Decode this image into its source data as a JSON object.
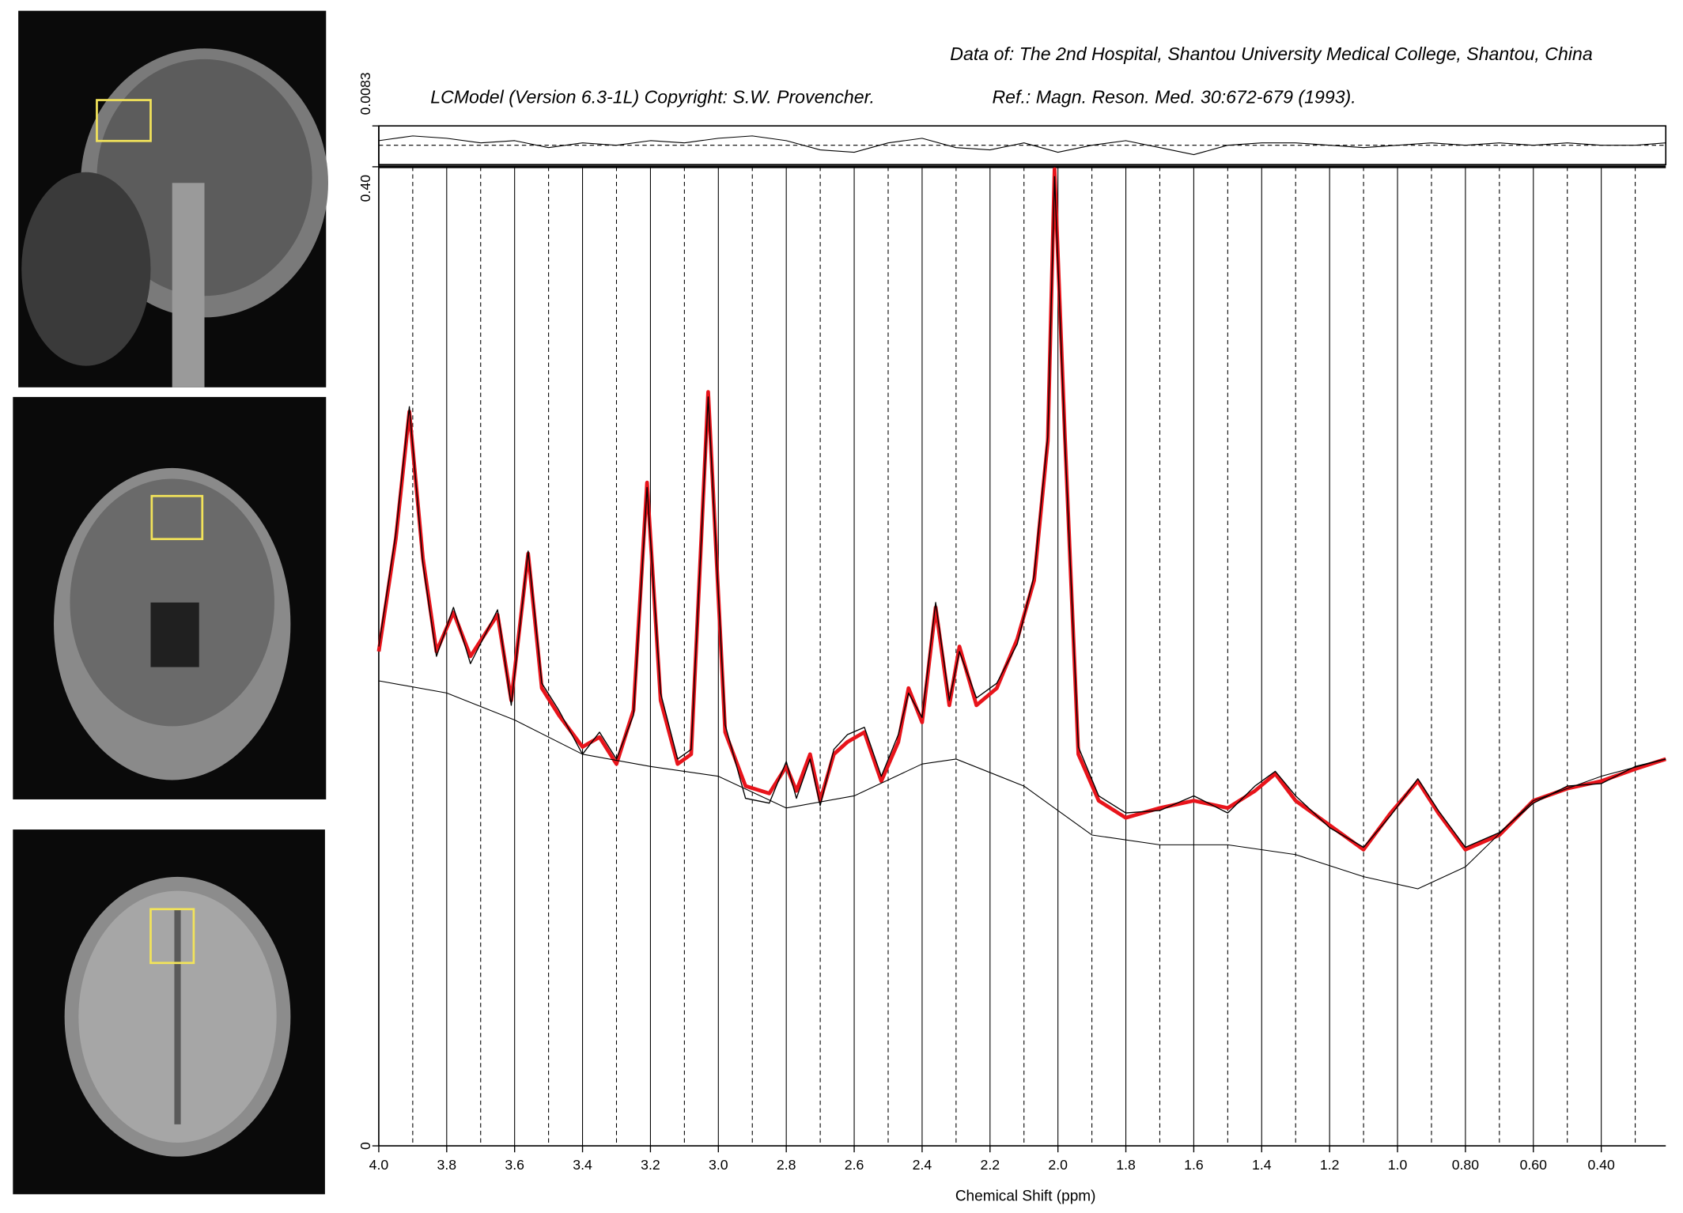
{
  "chart_data": {
    "type": "line",
    "header": "Data of: The 2nd Hospital, Shantou University Medical College, Shantou, China",
    "copyright": "LCModel (Version 6.3-1L) Copyright: S.W. Provencher.",
    "reference": "Ref.: Magn. Reson. Med. 30:672-679 (1993).",
    "x_label": "Chemical Shift (ppm)",
    "xlim": [
      4.0,
      0.21
    ],
    "xticks": [
      {
        "value": 4.0,
        "label": "4.0"
      },
      3.8,
      3.6,
      3.4,
      3.2,
      {
        "value": 3.0,
        "label": "3.0"
      },
      2.8,
      2.6,
      2.4,
      2.2,
      {
        "value": 2.0,
        "label": "2.0"
      },
      1.8,
      1.6,
      1.4,
      1.2,
      {
        "value": 1.0,
        "label": "1.0"
      },
      {
        "value": 0.8,
        "label": "0.80"
      },
      {
        "value": 0.6,
        "label": "0.60"
      },
      {
        "value": 0.4,
        "label": "0.40"
      }
    ],
    "xminorticks": [
      3.9,
      3.7,
      3.5,
      3.3,
      3.1,
      2.9,
      2.7,
      2.5,
      2.3,
      2.1,
      1.9,
      1.7,
      1.5,
      1.3,
      1.1,
      0.9,
      0.7,
      0.5,
      0.3
    ],
    "ylim": [
      0,
      0.4
    ],
    "yticks": [
      0,
      {
        "value": 0.4,
        "label": "0.40"
      }
    ],
    "x": [
      4.0,
      3.95,
      3.91,
      3.87,
      3.83,
      3.78,
      3.73,
      3.65,
      3.61,
      3.56,
      3.52,
      3.47,
      3.4,
      3.35,
      3.3,
      3.25,
      3.21,
      3.17,
      3.12,
      3.08,
      3.03,
      2.98,
      2.92,
      2.85,
      2.8,
      2.77,
      2.73,
      2.7,
      2.66,
      2.62,
      2.57,
      2.52,
      2.47,
      2.44,
      2.4,
      2.36,
      2.32,
      2.29,
      2.24,
      2.18,
      2.12,
      2.07,
      2.03,
      2.01,
      1.98,
      1.94,
      1.88,
      1.8,
      1.7,
      1.6,
      1.5,
      1.42,
      1.36,
      1.3,
      1.2,
      1.1,
      1.02,
      0.94,
      0.88,
      0.8,
      0.7,
      0.6,
      0.5,
      0.4,
      0.3,
      0.21
    ],
    "series": [
      {
        "color": "#e8141b",
        "width": 3.5,
        "values": [
          0.202,
          0.248,
          0.3,
          0.24,
          0.202,
          0.218,
          0.2,
          0.217,
          0.182,
          0.242,
          0.187,
          0.176,
          0.163,
          0.167,
          0.156,
          0.178,
          0.271,
          0.182,
          0.156,
          0.16,
          0.308,
          0.169,
          0.147,
          0.144,
          0.155,
          0.145,
          0.16,
          0.141,
          0.16,
          0.165,
          0.169,
          0.149,
          0.165,
          0.187,
          0.173,
          0.22,
          0.18,
          0.204,
          0.18,
          0.187,
          0.207,
          0.231,
          0.288,
          0.399,
          0.292,
          0.16,
          0.141,
          0.134,
          0.138,
          0.141,
          0.138,
          0.145,
          0.152,
          0.141,
          0.131,
          0.121,
          0.136,
          0.149,
          0.136,
          0.121,
          0.127,
          0.141,
          0.146,
          0.149,
          0.154,
          0.158
        ]
      },
      {
        "color": "#000000",
        "width": 1,
        "values": [
          0.204,
          0.25,
          0.302,
          0.238,
          0.2,
          0.22,
          0.197,
          0.219,
          0.18,
          0.243,
          0.189,
          0.178,
          0.16,
          0.169,
          0.158,
          0.176,
          0.269,
          0.185,
          0.158,
          0.162,
          0.306,
          0.172,
          0.142,
          0.14,
          0.157,
          0.142,
          0.158,
          0.139,
          0.162,
          0.168,
          0.171,
          0.151,
          0.168,
          0.185,
          0.175,
          0.222,
          0.182,
          0.202,
          0.183,
          0.189,
          0.205,
          0.233,
          0.29,
          0.396,
          0.29,
          0.163,
          0.143,
          0.136,
          0.137,
          0.143,
          0.136,
          0.147,
          0.153,
          0.143,
          0.13,
          0.122,
          0.135,
          0.15,
          0.137,
          0.122,
          0.128,
          0.14,
          0.147,
          0.148,
          0.155,
          0.158
        ]
      },
      {
        "color": "#000000",
        "width": 0.8,
        "x": [
          4.0,
          3.8,
          3.6,
          3.4,
          3.2,
          3.0,
          2.8,
          2.6,
          2.4,
          2.3,
          2.1,
          1.9,
          1.7,
          1.5,
          1.3,
          1.1,
          0.94,
          0.8,
          0.6,
          0.4,
          0.21
        ],
        "values": [
          0.19,
          0.185,
          0.174,
          0.16,
          0.155,
          0.151,
          0.138,
          0.143,
          0.156,
          0.158,
          0.147,
          0.127,
          0.123,
          0.123,
          0.119,
          0.11,
          0.105,
          0.114,
          0.141,
          0.151,
          0.158
        ]
      }
    ],
    "residual": {
      "ylim": [
        -0.0083,
        0.0083
      ],
      "yticks": [
        {
          "value": 0.0083,
          "label": "0.0083"
        }
      ],
      "x": [
        4.0,
        3.9,
        3.8,
        3.7,
        3.6,
        3.5,
        3.4,
        3.3,
        3.2,
        3.1,
        3.0,
        2.9,
        2.8,
        2.7,
        2.6,
        2.5,
        2.4,
        2.3,
        2.2,
        2.1,
        2.0,
        1.9,
        1.8,
        1.7,
        1.6,
        1.5,
        1.4,
        1.3,
        1.2,
        1.1,
        1.0,
        0.9,
        0.8,
        0.7,
        0.6,
        0.5,
        0.4,
        0.3,
        0.21
      ],
      "values": [
        0.002,
        0.004,
        0.003,
        0.001,
        0.002,
        -0.001,
        0.001,
        0.0,
        0.002,
        0.001,
        0.003,
        0.004,
        0.002,
        -0.002,
        -0.003,
        0.001,
        0.003,
        -0.001,
        -0.002,
        0.001,
        -0.003,
        0.0,
        0.002,
        -0.001,
        -0.004,
        0.0,
        0.001,
        0.001,
        0.0,
        -0.001,
        0.0,
        0.001,
        0.0,
        0.001,
        0.0,
        0.001,
        0.0,
        0.0,
        0.001
      ]
    }
  }
}
